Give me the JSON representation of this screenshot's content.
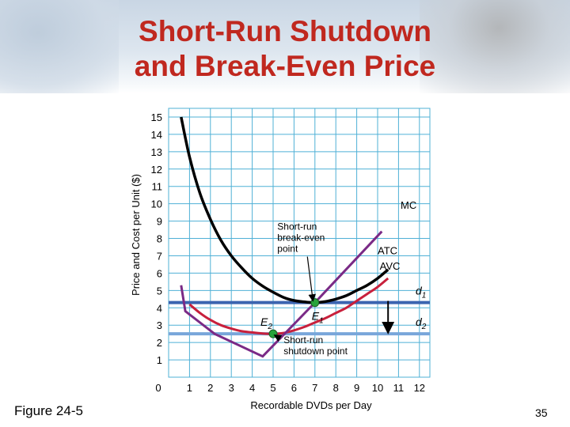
{
  "slide": {
    "title_line1": "Short-Run Shutdown",
    "title_line2": "and Break-Even Price",
    "figure_label": "Figure 24-5",
    "page_number": "35"
  },
  "colors": {
    "title": "#c0281f",
    "grid": "#4fb0d6",
    "atc": "#000000",
    "avc": "#c8203c",
    "mc": "#7a2a86",
    "d1": "#3b64b0",
    "d2": "#78a6da",
    "point": "#27a33a"
  },
  "chart_data": {
    "type": "line",
    "xlabel": "Recordable DVDs per Day",
    "ylabel": "Price and Cost per Unit ($)",
    "xlim": [
      0,
      12.5
    ],
    "ylim": [
      0,
      15.5
    ],
    "xticks": [
      0,
      1,
      2,
      3,
      4,
      5,
      6,
      7,
      8,
      9,
      10,
      11,
      12
    ],
    "yticks": [
      1,
      2,
      3,
      4,
      5,
      6,
      7,
      8,
      9,
      10,
      11,
      12,
      13,
      14,
      15
    ],
    "grid": true,
    "series": [
      {
        "name": "ATC",
        "x": [
          0.6,
          1,
          1.5,
          2,
          2.5,
          3,
          3.5,
          4,
          4.5,
          5,
          5.5,
          6,
          6.5,
          7,
          7.5,
          8,
          8.5,
          9,
          9.5,
          10,
          10.5
        ],
        "y": [
          15,
          12.7,
          10.6,
          9.1,
          7.9,
          7.0,
          6.3,
          5.7,
          5.25,
          4.9,
          4.6,
          4.42,
          4.34,
          4.3,
          4.36,
          4.5,
          4.7,
          5.0,
          5.3,
          5.7,
          6.2
        ]
      },
      {
        "name": "AVC",
        "x": [
          1,
          1.5,
          2,
          2.5,
          3,
          3.5,
          4,
          4.5,
          5,
          5.5,
          6,
          6.5,
          7,
          7.5,
          8,
          8.5,
          9,
          9.5,
          10,
          10.5
        ],
        "y": [
          4.2,
          3.7,
          3.3,
          3.0,
          2.8,
          2.65,
          2.58,
          2.52,
          2.5,
          2.55,
          2.7,
          2.9,
          3.15,
          3.4,
          3.7,
          4.0,
          4.4,
          4.8,
          5.2,
          5.7
        ]
      },
      {
        "name": "MC",
        "x": [
          0.6,
          0.8,
          2.2,
          4.5,
          7,
          10.2
        ],
        "y": [
          5.3,
          3.8,
          2.5,
          1.2,
          4.3,
          8.4
        ]
      }
    ],
    "hlines": [
      {
        "name": "d",
        "subscript": "1",
        "y": 4.3
      },
      {
        "name": "d",
        "subscript": "2",
        "y": 2.5
      }
    ],
    "points": [
      {
        "name": "E",
        "subscript": "1",
        "x": 7,
        "y": 4.3
      },
      {
        "name": "E",
        "subscript": "2",
        "x": 5,
        "y": 2.5
      }
    ],
    "curve_labels": [
      {
        "text": "MC",
        "x": 11.1,
        "y": 9.7
      },
      {
        "text": "ATC",
        "x": 10,
        "y": 7.1
      },
      {
        "text": "AVC",
        "x": 10.1,
        "y": 6.2
      }
    ],
    "annotations": [
      {
        "lines": [
          "Short-run",
          "break-even",
          "point"
        ],
        "x": 5.2,
        "y": 8.5,
        "arrow_to": [
          6.9,
          4.45
        ]
      },
      {
        "lines": [
          "Short-run",
          "shutdown point"
        ],
        "x": 5.5,
        "y": 1.95,
        "arrow_to": [
          5.1,
          2.4
        ]
      }
    ],
    "shift_arrow": {
      "x": 10.5,
      "from": 4.4,
      "to": 2.65
    }
  }
}
